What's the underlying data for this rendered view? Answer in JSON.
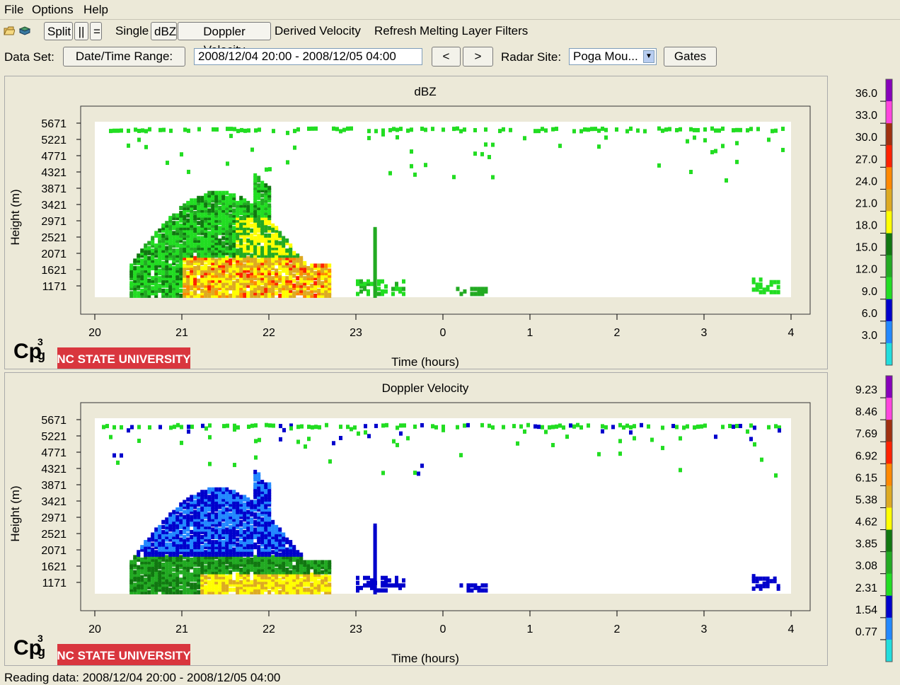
{
  "menu": [
    "File",
    "Options",
    "Help"
  ],
  "toolbar": {
    "split": "Split",
    "pipes": "||",
    "equals": "=",
    "single": "Single",
    "dbz": "dBZ",
    "doppler": "Doppler Velocity",
    "derived": "Derived Velocity",
    "refresh": "Refresh",
    "melting": "Melting Layer",
    "filters": "Filters"
  },
  "dataset": {
    "label": "Data Set:",
    "range_button": "Date/Time Range:",
    "range_value": "2008/12/04 20:00 - 2008/12/05 04:00",
    "prev": "<",
    "next": ">",
    "site_label": "Radar Site:",
    "site_value": "Poga Mou...",
    "gates": "Gates"
  },
  "chart_data": [
    {
      "type": "heatmap",
      "title": "dBZ",
      "xlabel": "Time (hours)",
      "ylabel": "Height (m)",
      "x_ticks": [
        "20",
        "21",
        "22",
        "23",
        "0",
        "1",
        "2",
        "3",
        "4"
      ],
      "y_ticks": [
        "5671",
        "5221",
        "4771",
        "4321",
        "3871",
        "3421",
        "2971",
        "2521",
        "2071",
        "1621",
        "1171"
      ],
      "xlim": [
        20,
        28
      ],
      "colorbar_ticks": [
        "36.0",
        "33.0",
        "30.0",
        "27.0",
        "24.0",
        "21.0",
        "18.0",
        "15.0",
        "12.0",
        "9.0",
        "6.0",
        "3.0"
      ],
      "colorbar_colors": [
        "#8800bb",
        "#ff44dd",
        "#a03010",
        "#ff2200",
        "#ff8800",
        "#ddaa22",
        "#ffff00",
        "#117711",
        "#22aa22",
        "#22dd22",
        "#0000cc",
        "#2288ff",
        "#22dddd"
      ]
    },
    {
      "type": "heatmap",
      "title": "Doppler Velocity",
      "xlabel": "Time (hours)",
      "ylabel": "Height (m)",
      "x_ticks": [
        "20",
        "21",
        "22",
        "23",
        "0",
        "1",
        "2",
        "3",
        "4"
      ],
      "y_ticks": [
        "5671",
        "5221",
        "4771",
        "4321",
        "3871",
        "3421",
        "2971",
        "2521",
        "2071",
        "1621",
        "1171"
      ],
      "xlim": [
        20,
        28
      ],
      "colorbar_ticks": [
        "9.23",
        "8.46",
        "7.69",
        "6.92",
        "6.15",
        "5.38",
        "4.62",
        "3.85",
        "3.08",
        "2.31",
        "1.54",
        "0.77"
      ],
      "colorbar_colors": [
        "#8800bb",
        "#ff44dd",
        "#a03010",
        "#ff2200",
        "#ff8800",
        "#ddaa22",
        "#ffff00",
        "#117711",
        "#22aa22",
        "#22dd22",
        "#0000cc",
        "#2288ff",
        "#22dddd"
      ]
    }
  ],
  "logo": {
    "university": "NC STATE UNIVERSITY"
  },
  "status": "Reading data: 2008/12/04 20:00 - 2008/12/05 04:00"
}
